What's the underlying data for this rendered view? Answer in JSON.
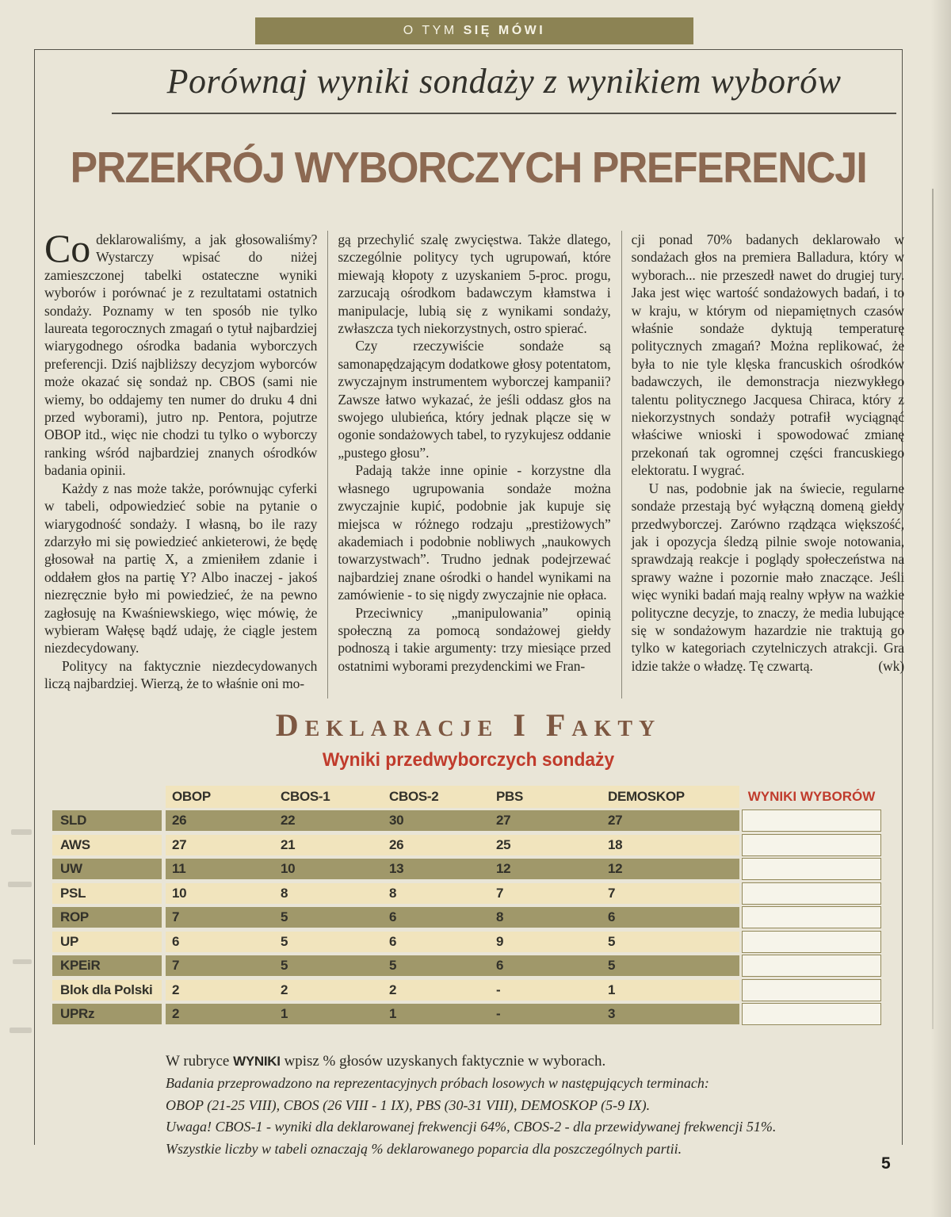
{
  "banner": {
    "text_light": "O TYM",
    "text_bold": "SIĘ MÓWI"
  },
  "headline": "Porównaj wyniki sondaży z wynikiem wyborów",
  "title": "PRZEKRÓJ WYBORCZYCH PREFERENCJI",
  "article": {
    "dropcap": "Co",
    "columns": [
      [
        {
          "indent": false,
          "text": "deklarowaliśmy, a jak głosowaliśmy? Wystarczy wpisać do niżej zamieszczonej tabelki ostateczne wyniki wyborów i porównać je z rezultatami ostatnich sondaży. Poznamy w ten sposób nie tylko laureata tegorocznych zmagań o tytuł najbardziej wiarygodnego ośrodka badania wyborczych preferencji. Dziś najbliższy decyzjom wyborców może okazać się sondaż np. CBOS (sami nie wiemy, bo oddajemy ten numer do druku 4 dni przed wyborami), jutro np. Pentora, pojutrze OBOP itd., więc nie chodzi tu tylko o wyborczy ranking wśród najbardziej znanych ośrodków badania opinii."
        },
        {
          "indent": true,
          "text": "Każdy z nas może także, porównując cyferki w tabeli, odpowiedzieć sobie na pytanie o wiarygodność sondaży. I własną, bo ile razy zdarzyło mi się powiedzieć ankieterowi, że będę głosował na partię X, a zmieniłem zdanie i oddałem głos na partię Y? Albo inaczej - jakoś niezręcznie było mi powiedzieć, że na pewno zagłosuję na Kwaśniewskiego, więc mówię, że wybieram Wałęsę bądź udaję, że ciągle jestem niezdecydowany."
        },
        {
          "indent": true,
          "text": "Politycy na faktycznie niezdecydowanych liczą najbardziej. Wierzą, że to właśnie oni mo-"
        }
      ],
      [
        {
          "indent": false,
          "text": "gą przechylić szalę zwycięstwa. Także dlatego, szczególnie politycy tych ugrupowań, które miewają kłopoty z uzyskaniem 5-proc. progu, zarzucają ośrodkom badawczym kłamstwa i manipulacje, lubią się z wynikami sondaży, zwłaszcza tych niekorzystnych, ostro spierać."
        },
        {
          "indent": true,
          "text": "Czy rzeczywiście sondaże są samonapędzającym dodatkowe głosy potentatom, zwyczajnym instrumentem wyborczej kampanii? Zawsze łatwo wykazać, że jeśli oddasz głos na swojego ulubieńca, który jednak plącze się w ogonie sondażowych tabel, to ryzykujesz oddanie „pustego głosu”."
        },
        {
          "indent": true,
          "text": "Padają także inne opinie - korzystne dla własnego ugrupowania sondaże można zwyczajnie kupić, podobnie jak kupuje się miejsca w różnego rodzaju „prestiżowych” akademiach i podobnie nobliwych „naukowych towarzystwach”. Trudno jednak podejrzewać najbardziej znane ośrodki o handel wynikami na zamówienie - to się nigdy zwyczajnie nie opłaca."
        },
        {
          "indent": true,
          "text": "Przeciwnicy „manipulowania” opinią społeczną za pomocą sondażowej giełdy podnoszą i takie argumenty: trzy miesiące przed ostatnimi wyborami prezydenckimi we Fran-"
        }
      ],
      [
        {
          "indent": false,
          "text": "cji ponad 70% badanych deklarowało w sondażach głos na premiera Balladura, który w wyborach... nie przeszedł nawet do drugiej tury. Jaka jest więc wartość sondażowych badań, i to w kraju, w którym od niepamiętnych czasów właśnie sondaże dyktują temperaturę politycznych zmagań? Można replikować, że była to nie tyle klęska francuskich ośrodków badawczych, ile demonstracja niezwykłego talentu politycznego Jacquesa Chiraca, który z niekorzystnych sondaży potrafił wyciągnąć właściwe wnioski i spowodować zmianę przekonań tak ogromnej części francuskiego elektoratu. I wygrać."
        },
        {
          "indent": true,
          "text": "U nas, podobnie jak na świecie, regularne sondaże przestają być wyłączną domeną giełdy przedwyborczej. Zarówno rządząca większość, jak i opozycja śledzą pilnie swoje notowania, sprawdzają reakcje i poglądy społeczeństwa na sprawy ważne i pozornie mało znaczące. Jeśli więc wyniki badań mają realny wpływ na ważkie polityczne decyzje, to znaczy, że media lubujące się w sondażowym hazardzie nie traktują go tylko w kategoriach czytelniczych atrakcji. Gra idzie także o władzę. Tę czwartą.",
          "sig": "(wk)"
        }
      ]
    ]
  },
  "section": {
    "heading": "Deklaracje i Fakty",
    "subheading": "Wyniki przedwyborczych sondaży"
  },
  "table": {
    "columns": [
      "OBOP",
      "CBOS-1",
      "CBOS-2",
      "PBS",
      "DEMOSKOP"
    ],
    "results_column": "WYNIKI WYBORÓW",
    "rows": [
      {
        "party": "SLD",
        "values": [
          "26",
          "22",
          "30",
          "27",
          "27"
        ]
      },
      {
        "party": "AWS",
        "values": [
          "27",
          "21",
          "26",
          "25",
          "18"
        ]
      },
      {
        "party": "UW",
        "values": [
          "11",
          "10",
          "13",
          "12",
          "12"
        ]
      },
      {
        "party": "PSL",
        "values": [
          "10",
          "8",
          "8",
          "7",
          "7"
        ]
      },
      {
        "party": "ROP",
        "values": [
          "7",
          "5",
          "6",
          "8",
          "6"
        ]
      },
      {
        "party": "UP",
        "values": [
          "6",
          "5",
          "6",
          "9",
          "5"
        ]
      },
      {
        "party": "KPEiR",
        "values": [
          "7",
          "5",
          "5",
          "6",
          "5"
        ]
      },
      {
        "party": "Blok dla Polski",
        "values": [
          "2",
          "2",
          "2",
          "-",
          "1"
        ]
      },
      {
        "party": "UPRz",
        "values": [
          "2",
          "1",
          "1",
          "-",
          "3"
        ]
      }
    ]
  },
  "notes": {
    "intro_prefix": "W rubryce ",
    "intro_bold": "WYNIKI",
    "intro_suffix": " wpisz % głosów uzyskanych faktycznie w wyborach.",
    "italic_lines": [
      "Badania przeprowadzono na reprezentacyjnych próbach losowych w następujących terminach:",
      "OBOP (21-25 VIII), CBOS (26 VIII - 1 IX), PBS (30-31 VIII), DEMOSKOP (5-9 IX).",
      "Uwaga! CBOS-1 - wyniki dla deklarowanej frekwencji 64%, CBOS-2 - dla przewidywanej frekwencji 51%.",
      "Wszystkie liczby w tabeli oznaczają % deklarowanego poparcia dla poszczególnych partii."
    ]
  },
  "page_number": "5",
  "colors": {
    "paper": "#e9e5d7",
    "banner": "#8c8354",
    "title": "#8c6952",
    "heading": "#7d5741",
    "red": "#c03b2c",
    "olive": "#a0986a",
    "cream": "#f1e4bd",
    "boxborder": "#93895b"
  }
}
